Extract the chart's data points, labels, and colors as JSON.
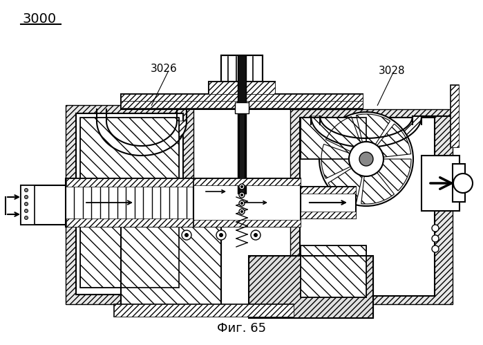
{
  "title": "Фиг. 65",
  "label_top_left": "3000",
  "label_3026": "3026",
  "label_3028": "3028",
  "bg_color": "#ffffff",
  "line_color": "#000000",
  "title_fontsize": 13,
  "label_fontsize": 11,
  "fig_width": 6.99,
  "fig_height": 4.99,
  "dpi": 100
}
